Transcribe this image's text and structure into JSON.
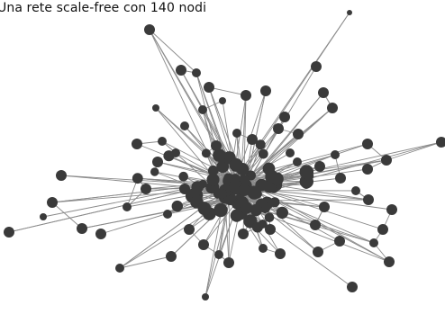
{
  "figure": {
    "caption": "Una rete scale-free con 140 nodi"
  },
  "graph": {
    "node_count": 140,
    "type": "scale-free",
    "node_color": "#3a3a3a",
    "edge_color": "#8a8a8a"
  }
}
